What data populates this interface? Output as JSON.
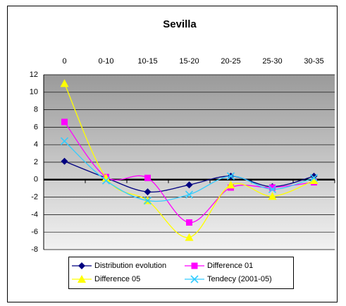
{
  "chart_data": {
    "type": "line",
    "title": "Sevilla",
    "categories": [
      "0",
      "0-10",
      "10-15",
      "15-20",
      "20-25",
      "25-30",
      "30-35"
    ],
    "series": [
      {
        "name": "Distribution evolution",
        "color": "#000080",
        "marker": "diamond",
        "values": [
          2.1,
          0.2,
          -1.4,
          -0.6,
          0.4,
          -0.8,
          0.4
        ]
      },
      {
        "name": "Difference 01",
        "color": "#ff00ff",
        "marker": "square",
        "values": [
          6.6,
          0.3,
          0.2,
          -4.9,
          -0.9,
          -0.9,
          -0.3
        ]
      },
      {
        "name": "Difference 05",
        "color": "#ffff00",
        "marker": "triangle",
        "values": [
          11,
          0.2,
          -2.4,
          -6.6,
          -0.6,
          -1.9,
          -0.1
        ]
      },
      {
        "name": "Tendecy (2001-05)",
        "color": "#33ccff",
        "marker": "x",
        "values": [
          4.4,
          -0.1,
          -2.4,
          -1.7,
          0.4,
          -1.1,
          0.2
        ]
      }
    ],
    "ylim": [
      -8,
      12
    ],
    "yticks": [
      -8,
      -6,
      -4,
      -2,
      0,
      2,
      4,
      6,
      8,
      10,
      12
    ],
    "grid": true,
    "smooth": true,
    "legend": "bottom"
  }
}
